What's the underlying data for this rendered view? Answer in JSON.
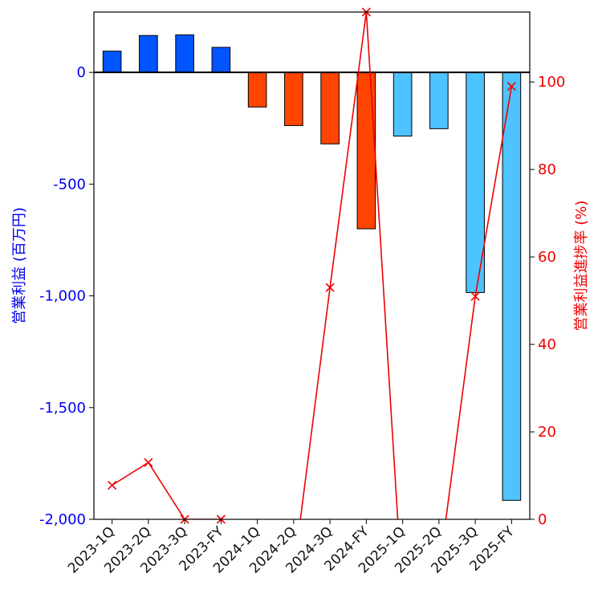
{
  "chart_data": {
    "type": "bar",
    "categories": [
      "2023-1Q",
      "2023-2Q",
      "2023-3Q",
      "2023-FY",
      "2024-1Q",
      "2024-2Q",
      "2024-3Q",
      "2024-FY",
      "2025-1Q",
      "2025-2Q",
      "2025-3Q",
      "2025-FY"
    ],
    "series": [
      {
        "axis": "left",
        "type": "bar",
        "values": [
          95,
          165,
          168,
          112,
          -155,
          -238,
          -320,
          -700,
          -285,
          -252,
          -985,
          -1915
        ],
        "colors": [
          "#0055ff",
          "#0055ff",
          "#0055ff",
          "#0055ff",
          "#ff4500",
          "#ff4500",
          "#ff4500",
          "#ff4500",
          "#4dc3ff",
          "#4dc3ff",
          "#4dc3ff",
          "#4dc3ff"
        ]
      },
      {
        "axis": "right",
        "type": "line",
        "color": "#ee0000",
        "marker": "x",
        "values": [
          7.8,
          13,
          0,
          0,
          -15,
          -12,
          53,
          116,
          -18,
          -12,
          51,
          99
        ]
      }
    ],
    "ylabel_left": "営業利益 (百万円)",
    "ylabel_right": "営業利益進捗率 (%)",
    "ylim_left": [
      -2000,
      270
    ],
    "ylim_right": [
      0,
      116
    ],
    "yticks_left": [
      0,
      -500,
      -1000,
      -1500,
      -2000
    ],
    "ytick_labels_left": [
      "0",
      "-500",
      "-1,000",
      "-1,500",
      "-2,000"
    ],
    "yticks_right": [
      0,
      20,
      40,
      60,
      80,
      100
    ],
    "ytick_labels_right": [
      "0",
      "20",
      "40",
      "60",
      "80",
      "100"
    ],
    "grid": false,
    "colors": {
      "left_axis": "#0000ee",
      "right_axis": "#ee0000",
      "zero_line": "#000000"
    }
  }
}
